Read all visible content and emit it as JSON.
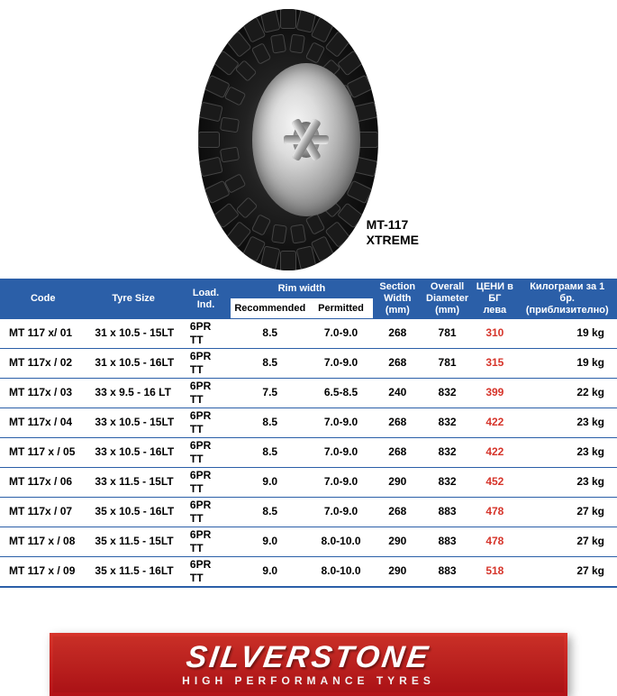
{
  "product": {
    "name_line1": "MT-117",
    "name_line2": "XTREME"
  },
  "table": {
    "headers": {
      "code": "Code",
      "tyre_size": "Tyre Size",
      "load_ind": "Load. Ind.",
      "rim_width": "Rim width",
      "recommended": "Recommended",
      "permitted": "Permitted",
      "section_width": "Section Width (mm)",
      "overall_diameter": "Overall Diameter (mm)",
      "price": "ЦЕНИ в БГ лева",
      "weight": "Килограми за 1 бр. (приблизително)"
    },
    "rows": [
      {
        "code": "MT 117 x/ 01",
        "size": "31 x 10.5 - 15LT",
        "load": "6PR TT",
        "rec": "8.5",
        "perm": "7.0-9.0",
        "sec": "268",
        "dia": "781",
        "price": "310",
        "wt": "19 kg"
      },
      {
        "code": "MT 117x / 02",
        "size": "31 x 10.5 - 16LT",
        "load": "6PR TT",
        "rec": "8.5",
        "perm": "7.0-9.0",
        "sec": "268",
        "dia": "781",
        "price": "315",
        "wt": "19 kg"
      },
      {
        "code": "MT 117x / 03",
        "size": "33 x 9.5 - 16 LT",
        "load": "6PR TT",
        "rec": "7.5",
        "perm": "6.5-8.5",
        "sec": "240",
        "dia": "832",
        "price": "399",
        "wt": "22 kg"
      },
      {
        "code": "MT 117x / 04",
        "size": "33 x 10.5 - 15LT",
        "load": "6PR TT",
        "rec": "8.5",
        "perm": "7.0-9.0",
        "sec": "268",
        "dia": "832",
        "price": "422",
        "wt": "23 kg"
      },
      {
        "code": "MT 117 x / 05",
        "size": "33 x 10.5 - 16LT",
        "load": "6PR TT",
        "rec": "8.5",
        "perm": "7.0-9.0",
        "sec": "268",
        "dia": "832",
        "price": "422",
        "wt": "23 kg"
      },
      {
        "code": "MT 117x / 06",
        "size": "33 x 11.5 - 15LT",
        "load": "6PR TT",
        "rec": "9.0",
        "perm": "7.0-9.0",
        "sec": "290",
        "dia": "832",
        "price": "452",
        "wt": "23 kg"
      },
      {
        "code": "MT 117x / 07",
        "size": "35 x 10.5 - 16LT",
        "load": "6PR TT",
        "rec": "8.5",
        "perm": "7.0-9.0",
        "sec": "268",
        "dia": "883",
        "price": "478",
        "wt": "27 kg"
      },
      {
        "code": "MT 117 x / 08",
        "size": "35 x 11.5 - 15LT",
        "load": "6PR TT",
        "rec": "9.0",
        "perm": "8.0-10.0",
        "sec": "290",
        "dia": "883",
        "price": "478",
        "wt": "27 kg"
      },
      {
        "code": "MT 117 x / 09",
        "size": "35 x 11.5 - 16LT",
        "load": "6PR TT",
        "rec": "9.0",
        "perm": "8.0-10.0",
        "sec": "290",
        "dia": "883",
        "price": "518",
        "wt": "27 kg"
      }
    ]
  },
  "brand": {
    "name": "SILVERSTONE",
    "tagline": "HIGH PERFORMANCE TYRES"
  },
  "colors": {
    "header_bg": "#2b5fa8",
    "header_fg": "#ffffff",
    "price_color": "#d6342a",
    "banner_bg": "#c1272d"
  }
}
